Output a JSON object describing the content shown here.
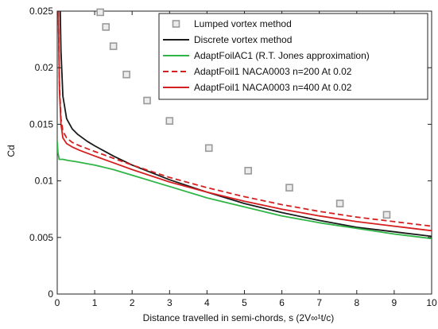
{
  "chart_data": {
    "type": "line",
    "xlabel": "Distance travelled in semi-chords, s (2V∞¹t/c)",
    "ylabel": "Cd",
    "xlim": [
      0,
      10
    ],
    "ylim": [
      0,
      0.025
    ],
    "xticks": [
      0,
      1,
      2,
      3,
      4,
      5,
      6,
      7,
      8,
      9,
      10
    ],
    "yticks": [
      0,
      0.005,
      0.01,
      0.015,
      0.02,
      0.025
    ],
    "ytick_labels": [
      "0",
      "0.005",
      "0.01",
      "0.015",
      "0.02",
      "0.025"
    ],
    "grid": false,
    "legend_position": "top-right",
    "series": [
      {
        "name": "Lumped vortex method",
        "style": "markers",
        "color": "#9a9a9a",
        "x": [
          1.15,
          1.3,
          1.5,
          1.85,
          2.4,
          3.0,
          4.05,
          5.1,
          6.2,
          7.55,
          8.8
        ],
        "y": [
          0.0249,
          0.0236,
          0.0219,
          0.0194,
          0.0171,
          0.0153,
          0.0129,
          0.0109,
          0.0094,
          0.008,
          0.007
        ]
      },
      {
        "name": "Discrete vortex method",
        "style": "solid",
        "color": "#1a1a1a",
        "x": [
          0.08,
          0.1,
          0.15,
          0.25,
          0.4,
          0.55,
          0.8,
          1.0,
          1.5,
          2.0,
          3.0,
          4.0,
          5.0,
          6.0,
          7.0,
          8.0,
          9.0,
          10.0
        ],
        "y": [
          0.025,
          0.0215,
          0.0175,
          0.0155,
          0.0146,
          0.0141,
          0.0135,
          0.0131,
          0.0122,
          0.0114,
          0.0101,
          0.009,
          0.008,
          0.0072,
          0.0065,
          0.0059,
          0.0055,
          0.0051
        ]
      },
      {
        "name": "AdaptFoilAC1 (R.T. Jones approximation)",
        "style": "solid",
        "color": "#2fb545",
        "x": [
          0.0,
          0.02,
          0.05,
          0.15,
          0.3,
          0.5,
          1.0,
          1.5,
          2.0,
          3.0,
          4.0,
          5.0,
          6.0,
          7.0,
          8.0,
          9.0,
          10.0
        ],
        "y": [
          0.0135,
          0.0125,
          0.0119,
          0.0119,
          0.0118,
          0.0117,
          0.0114,
          0.011,
          0.0105,
          0.0095,
          0.0085,
          0.0077,
          0.0069,
          0.0063,
          0.0058,
          0.0053,
          0.0049
        ]
      },
      {
        "name": "AdaptFoil1 NACA0003 n=200 At 0.02",
        "style": "dashed",
        "color": "#d42020",
        "x": [
          0.03,
          0.06,
          0.1,
          0.15,
          0.25,
          0.4,
          0.6,
          1.0,
          1.5,
          2.0,
          3.0,
          4.0,
          5.0,
          6.0,
          7.0,
          8.0,
          9.0,
          10.0
        ],
        "y": [
          0.025,
          0.0185,
          0.0155,
          0.0144,
          0.0138,
          0.0134,
          0.0131,
          0.0126,
          0.012,
          0.0114,
          0.0103,
          0.0094,
          0.0086,
          0.0079,
          0.0073,
          0.0068,
          0.0064,
          0.006
        ]
      },
      {
        "name": "AdaptFoil1 NACA0003 n=400 At 0.02",
        "style": "solid",
        "color": "#d42020",
        "x": [
          0.03,
          0.06,
          0.1,
          0.15,
          0.25,
          0.4,
          0.6,
          1.0,
          1.5,
          2.0,
          3.0,
          4.0,
          5.0,
          6.0,
          7.0,
          8.0,
          9.0,
          10.0
        ],
        "y": [
          0.025,
          0.018,
          0.015,
          0.0138,
          0.0133,
          0.013,
          0.0127,
          0.0122,
          0.0116,
          0.011,
          0.0099,
          0.009,
          0.0082,
          0.0075,
          0.0069,
          0.0064,
          0.006,
          0.0056
        ]
      }
    ]
  }
}
